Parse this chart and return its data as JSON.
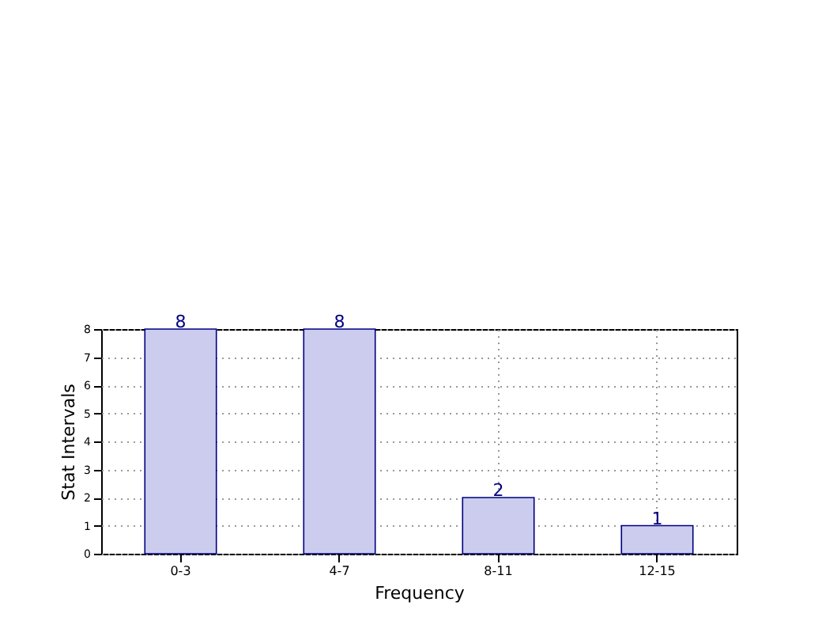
{
  "chart_data": {
    "type": "bar",
    "xlabel": "Frequency",
    "ylabel": "Stat Intervals",
    "categories": [
      "0-3",
      "4-7",
      "8-11",
      "12-15"
    ],
    "values": [
      8,
      8,
      2,
      1
    ],
    "color": "#ccccee",
    "ylim": [
      0,
      8
    ],
    "yticks": [
      0,
      1,
      2,
      3,
      4,
      5,
      6,
      7,
      8
    ],
    "grid": true,
    "data_labels": true
  }
}
